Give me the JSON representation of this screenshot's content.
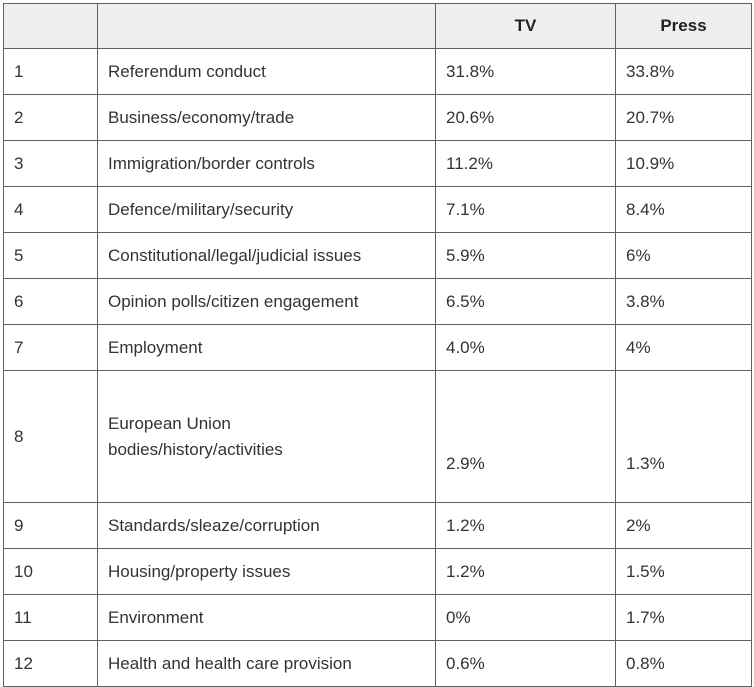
{
  "table": {
    "headers": [
      "",
      "",
      "TV",
      "Press"
    ],
    "rows": [
      {
        "rank": "1",
        "topic": "Referendum conduct",
        "tv": "31.8%",
        "press": "33.8%"
      },
      {
        "rank": "2",
        "topic": "Business/economy/trade",
        "tv": "20.6%",
        "press": "20.7%"
      },
      {
        "rank": "3",
        "topic": "Immigration/border controls",
        "tv": "11.2%",
        "press": "10.9%"
      },
      {
        "rank": "4",
        "topic": "Defence/military/security",
        "tv": "7.1%",
        "press": "8.4%"
      },
      {
        "rank": "5",
        "topic": "Constitutional/legal/judicial issues",
        "tv": "5.9%",
        "press": "6%"
      },
      {
        "rank": "6",
        "topic": "Opinion polls/citizen engagement",
        "tv": "6.5%",
        "press": "3.8%"
      },
      {
        "rank": "7",
        "topic": "Employment",
        "tv": "4.0%",
        "press": "4%"
      },
      {
        "rank": "8",
        "topic_line1": "European Union",
        "topic_line2": "bodies/history/activities",
        "tv": "2.9%",
        "press": "1.3%"
      },
      {
        "rank": "9",
        "topic": "Standards/sleaze/corruption",
        "tv": "1.2%",
        "press": "2%"
      },
      {
        "rank": "10",
        "topic": "Housing/property issues",
        "tv": "1.2%",
        "press": "1.5%"
      },
      {
        "rank": "11",
        "topic": "Environment",
        "tv": "0%",
        "press": "1.7%"
      },
      {
        "rank": "12",
        "topic": "Health and health care provision",
        "tv": "0.6%",
        "press": "0.8%"
      }
    ]
  }
}
